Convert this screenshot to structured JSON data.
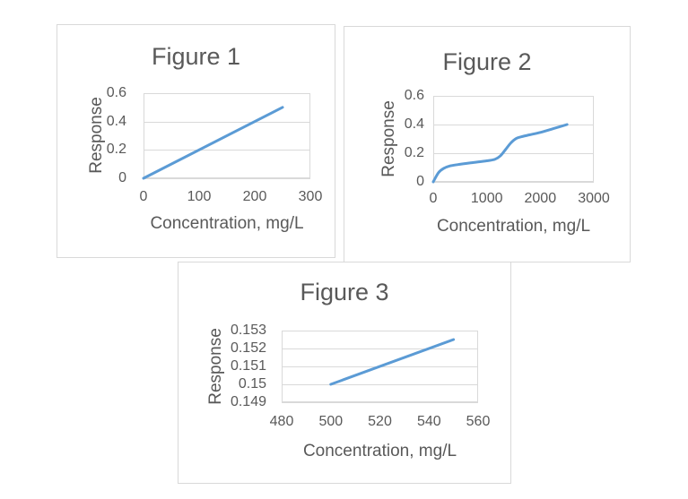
{
  "colors": {
    "line": "#5B9BD5",
    "grid": "#D9D9D9",
    "text": "#595959",
    "box_border": "#D9D9D9",
    "background": "#FFFFFF"
  },
  "chart_data": [
    {
      "id": "figure-1",
      "type": "line",
      "title": "Figure 1",
      "xlabel": "Concentration, mg/L",
      "ylabel": "Response",
      "xlim": [
        0,
        300
      ],
      "ylim": [
        0,
        0.6
      ],
      "x_ticks": [
        "0",
        "100",
        "200",
        "300"
      ],
      "y_ticks": [
        "0",
        "0.2",
        "0.4",
        "0.6"
      ],
      "grid": "horizontal",
      "legend": "none",
      "series": [
        {
          "name": "Response",
          "x": [
            0,
            250
          ],
          "y": [
            0,
            0.5
          ]
        }
      ]
    },
    {
      "id": "figure-2",
      "type": "line",
      "title": "Figure 2",
      "xlabel": "Concentration, mg/L",
      "ylabel": "Response",
      "xlim": [
        0,
        3000
      ],
      "ylim": [
        0,
        0.6
      ],
      "x_ticks": [
        "0",
        "1000",
        "2000",
        "3000"
      ],
      "y_ticks": [
        "0",
        "0.2",
        "0.4",
        "0.6"
      ],
      "grid": "horizontal",
      "legend": "none",
      "series": [
        {
          "name": "Response",
          "x": [
            0,
            100,
            200,
            300,
            450,
            700,
            1000,
            1150,
            1250,
            1350,
            1450,
            1550,
            1650,
            1800,
            2000,
            2250,
            2500
          ],
          "y": [
            0,
            0.065,
            0.095,
            0.11,
            0.12,
            0.133,
            0.147,
            0.157,
            0.18,
            0.225,
            0.272,
            0.303,
            0.315,
            0.328,
            0.345,
            0.372,
            0.4
          ]
        }
      ]
    },
    {
      "id": "figure-3",
      "type": "line",
      "title": "Figure 3",
      "xlabel": "Concentration, mg/L",
      "ylabel": "Response",
      "xlim": [
        480,
        560
      ],
      "ylim": [
        0.149,
        0.153
      ],
      "x_ticks": [
        "480",
        "500",
        "520",
        "540",
        "560"
      ],
      "y_ticks": [
        "0.149",
        "0.15",
        "0.151",
        "0.152",
        "0.153"
      ],
      "grid": "horizontal",
      "legend": "none",
      "series": [
        {
          "name": "Response",
          "x": [
            500,
            550
          ],
          "y": [
            0.15,
            0.1525
          ]
        }
      ]
    }
  ]
}
